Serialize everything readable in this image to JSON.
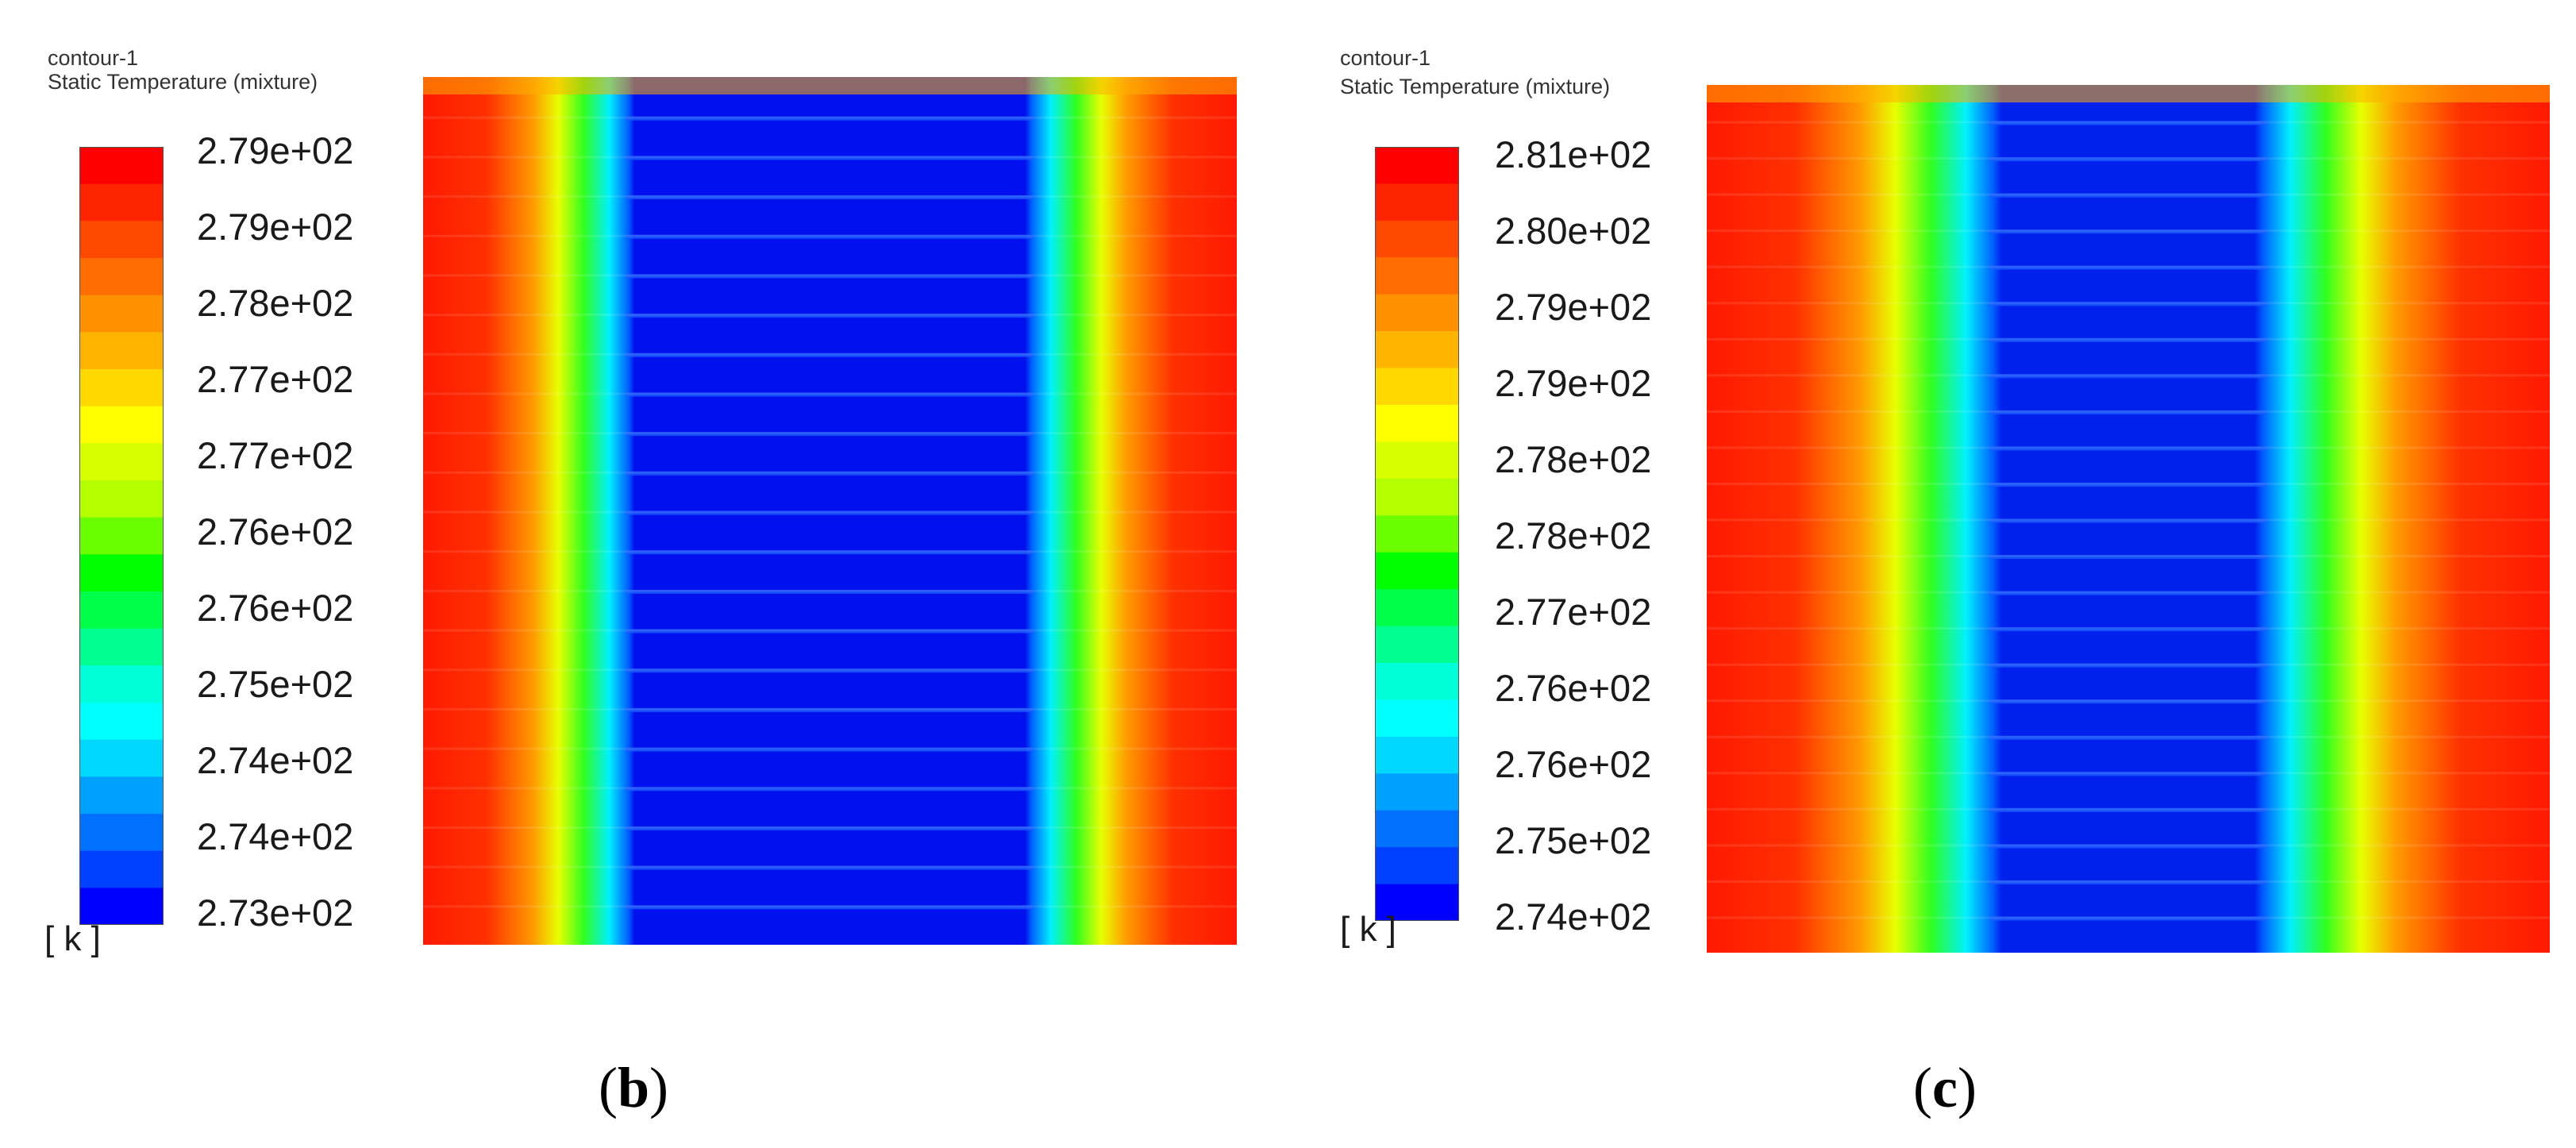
{
  "panels": [
    {
      "label_open": "(",
      "label_letter": "b",
      "label_close": ")",
      "title_line1": "contour-1",
      "title_line2": "Static Temperature (mixture)",
      "unit": "[ k ]",
      "ticks": [
        "2.79e+02",
        "2.79e+02",
        "2.78e+02",
        "2.77e+02",
        "2.77e+02",
        "2.76e+02",
        "2.76e+02",
        "2.75e+02",
        "2.74e+02",
        "2.74e+02",
        "2.73e+02"
      ],
      "field": {
        "core_width_fraction": 0.48,
        "stripe_count": 22,
        "side_color": "#ff2000",
        "core_color": "#0010ee"
      }
    },
    {
      "label_open": "(",
      "label_letter": "c",
      "label_close": ")",
      "title_line1": "contour-1",
      "title_line2": "Static Temperature (mixture)",
      "unit": "[ k ]",
      "ticks": [
        "2.81e+02",
        "2.80e+02",
        "2.79e+02",
        "2.79e+02",
        "2.78e+02",
        "2.78e+02",
        "2.77e+02",
        "2.76e+02",
        "2.76e+02",
        "2.75e+02",
        "2.74e+02"
      ],
      "field": {
        "core_width_fraction": 0.3,
        "stripe_count": 24,
        "side_color": "#ff2000",
        "core_color": "#0020ee"
      }
    }
  ],
  "colormap": [
    "#ff0000",
    "#ff2400",
    "#ff4800",
    "#ff6c00",
    "#ff9000",
    "#ffb400",
    "#ffd800",
    "#ffff00",
    "#d8ff00",
    "#b4ff00",
    "#6cff00",
    "#00ff00",
    "#00ff48",
    "#00ff90",
    "#00ffd8",
    "#00ffff",
    "#00d8ff",
    "#00a0ff",
    "#0070ff",
    "#0040ff",
    "#0000ff"
  ]
}
